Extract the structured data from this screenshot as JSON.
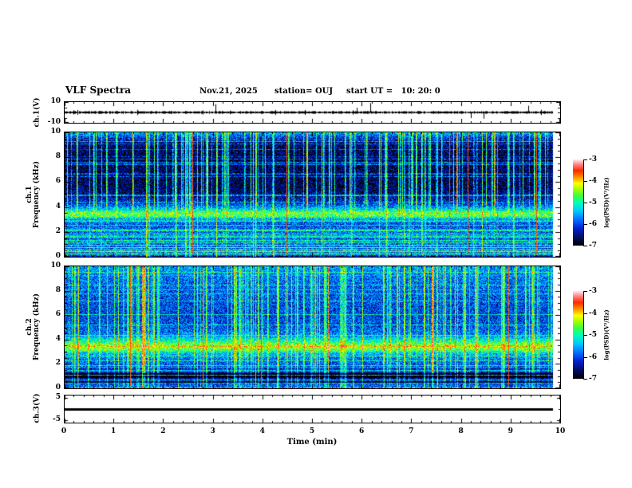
{
  "header": {
    "title": "VLF Spectra",
    "date": "Nov.21, 2025",
    "station": "station= OUJ",
    "start_ut": "start UT =   10: 20: 0"
  },
  "x_axis": {
    "label": "Time (min)",
    "tick_labels": [
      "0",
      "1",
      "2",
      "3",
      "4",
      "5",
      "6",
      "7",
      "8",
      "9",
      "10"
    ],
    "range_min": [
      0,
      10
    ],
    "minor_step_min": 0.2,
    "data_end_min": 9.84
  },
  "colorbars": [
    {
      "tick_labels": [
        "-3",
        "-4",
        "-5",
        "-6",
        "-7"
      ],
      "label": "log(PSD)(V²/Hz)"
    },
    {
      "tick_labels": [
        "-3",
        "-4",
        "-5",
        "-6",
        "-7"
      ],
      "label": "log(PSD)(V²/Hz)"
    }
  ],
  "palette": {
    "stops": [
      "#000000",
      "#000a50",
      "#0020d0",
      "#0070ff",
      "#00c8ff",
      "#00ffb4",
      "#3cff3c",
      "#aaff00",
      "#ffff00",
      "#ff9600",
      "#ff2800",
      "#ff8282",
      "#ffecec"
    ],
    "positions": [
      0,
      0.08,
      0.2,
      0.3,
      0.4,
      0.5,
      0.58,
      0.66,
      0.72,
      0.79,
      0.87,
      0.94,
      1
    ]
  },
  "chart_data": [
    {
      "type": "line",
      "name": "ch1-voltage-waveform",
      "ylabel": "ch.1(V)",
      "ylim": [
        -10,
        10
      ],
      "ytick_values": [
        10,
        -10
      ],
      "ytick_labels": [
        "10",
        "-10"
      ],
      "minor_ytick_values": [
        5,
        0,
        -5
      ],
      "baseline_v": 0,
      "noise_amp_v": 1.0,
      "spikes": [
        {
          "t_min": 3.05,
          "v": 8
        },
        {
          "t_min": 5.9,
          "v": 4.5
        },
        {
          "t_min": 6.18,
          "v": 9
        },
        {
          "t_min": 8.2,
          "v": -5.5
        },
        {
          "t_min": 8.45,
          "v": -6
        },
        {
          "t_min": 9.35,
          "v": 6.5
        }
      ],
      "seed": 3
    },
    {
      "type": "heatmap",
      "name": "ch1-spectrogram",
      "ylabel_lines": [
        "ch.1",
        "Frequency (kHz)"
      ],
      "ylim_khz": [
        0,
        10
      ],
      "ytick_values": [
        10,
        8,
        6,
        4,
        2,
        0
      ],
      "ytick_labels": [
        "10",
        "8",
        "6",
        "4",
        "2",
        "0"
      ],
      "minor_step_khz": 0.5,
      "value_range_log_psd": [
        -7,
        -3
      ],
      "background_profile": [
        [
          0,
          0.04
        ],
        [
          0.12,
          0.22
        ],
        [
          0.5,
          0.3
        ],
        [
          1.2,
          0.28
        ],
        [
          2,
          0.3
        ],
        [
          2.6,
          0.26
        ],
        [
          3.05,
          0.35
        ],
        [
          3.3,
          0.58
        ],
        [
          3.55,
          0.6
        ],
        [
          3.85,
          0.42
        ],
        [
          4.3,
          0.22
        ],
        [
          5,
          0.12
        ],
        [
          5.6,
          0.08
        ],
        [
          8.5,
          0.08
        ],
        [
          9.3,
          0.12
        ],
        [
          9.8,
          0.3
        ],
        [
          10,
          0.4
        ]
      ],
      "hlines": [
        {
          "f": 6.5,
          "v": 0.22
        },
        {
          "f": 4.95,
          "v": 0.28
        },
        {
          "f": 4.4,
          "v": 0.2
        },
        {
          "f": 2.9,
          "v": 0.3
        },
        {
          "f": 2.55,
          "v": 0.28
        },
        {
          "f": 2.1,
          "v": 0.35
        },
        {
          "f": 1.85,
          "v": 0.3
        },
        {
          "f": 1.6,
          "v": 0.32
        },
        {
          "f": 1.35,
          "v": 0.3
        },
        {
          "f": 1.15,
          "v": 0.35
        },
        {
          "f": 0.95,
          "v": 0.4
        },
        {
          "f": 0.75,
          "v": 0.45
        },
        {
          "f": 0.6,
          "v": 0.5
        },
        {
          "f": 0.45,
          "v": 0.55
        },
        {
          "f": 0.3,
          "v": 0.5
        },
        {
          "f": 0.18,
          "v": 0.35
        }
      ],
      "dark_hlines": [],
      "streaks": {
        "count": 130,
        "min": 0.25,
        "max": 0.6,
        "full_fraction": 0.35,
        "upper_cutoff_khz": 4.2,
        "lower_strength": 0.15,
        "red_count": 6
      },
      "noise": 0.16,
      "random_lines": 20,
      "seed": 7
    },
    {
      "type": "heatmap",
      "name": "ch2-spectrogram",
      "ylabel_lines": [
        "ch.2",
        "Frequency (kHz)"
      ],
      "ylim_khz": [
        0,
        10
      ],
      "ytick_values": [
        10,
        8,
        6,
        4,
        2,
        0
      ],
      "ytick_labels": [
        "10",
        "8",
        "6",
        "4",
        "2",
        "0"
      ],
      "minor_step_khz": 0.5,
      "value_range_log_psd": [
        -7,
        -3
      ],
      "background_profile": [
        [
          0,
          0.06
        ],
        [
          0.15,
          0.3
        ],
        [
          0.5,
          0.22
        ],
        [
          0.9,
          0.12
        ],
        [
          1.3,
          0.12
        ],
        [
          1.8,
          0.25
        ],
        [
          2.4,
          0.3
        ],
        [
          2.9,
          0.4
        ],
        [
          3.2,
          0.6
        ],
        [
          3.5,
          0.66
        ],
        [
          3.9,
          0.5
        ],
        [
          4.4,
          0.32
        ],
        [
          5,
          0.27
        ],
        [
          6,
          0.24
        ],
        [
          7.5,
          0.26
        ],
        [
          9,
          0.3
        ],
        [
          10,
          0.36
        ]
      ],
      "hlines": [
        {
          "f": 8.5,
          "v": 0.25
        },
        {
          "f": 7.2,
          "v": 0.25
        },
        {
          "f": 6.1,
          "v": 0.3
        },
        {
          "f": 5.2,
          "v": 0.28
        },
        {
          "f": 4.4,
          "v": 0.3
        },
        {
          "f": 2.7,
          "v": 0.3
        },
        {
          "f": 2.3,
          "v": 0.3
        },
        {
          "f": 1.9,
          "v": 0.35
        },
        {
          "f": 1.5,
          "v": 0.3
        },
        {
          "f": 1.1,
          "v": 0.3
        },
        {
          "f": 0.7,
          "v": 0.35
        },
        {
          "f": 0.45,
          "v": 0.4
        },
        {
          "f": 0.08,
          "v": 0.88
        }
      ],
      "dark_hlines": [
        {
          "f": 0.95,
          "v": 0.25
        },
        {
          "f": 1.25,
          "v": 0.3
        },
        {
          "f": 0.55,
          "v": 0.2
        }
      ],
      "streaks": {
        "count": 150,
        "min": 0.25,
        "max": 0.55,
        "full_fraction": 0.6,
        "upper_cutoff_khz": 2.0,
        "lower_strength": 0.5,
        "red_count": 5
      },
      "noise": 0.15,
      "random_lines": 16,
      "seed": 13
    },
    {
      "type": "line",
      "name": "ch3-voltage-flat",
      "ylabel": "ch.3(V)",
      "ylim": [
        -6,
        6
      ],
      "ytick_values": [
        5,
        -5
      ],
      "ytick_labels": [
        "5",
        "-5"
      ],
      "minor_ytick_values": [
        0
      ],
      "flat_line_v": 0,
      "line_thickness_px": 3,
      "seed": 5
    }
  ]
}
